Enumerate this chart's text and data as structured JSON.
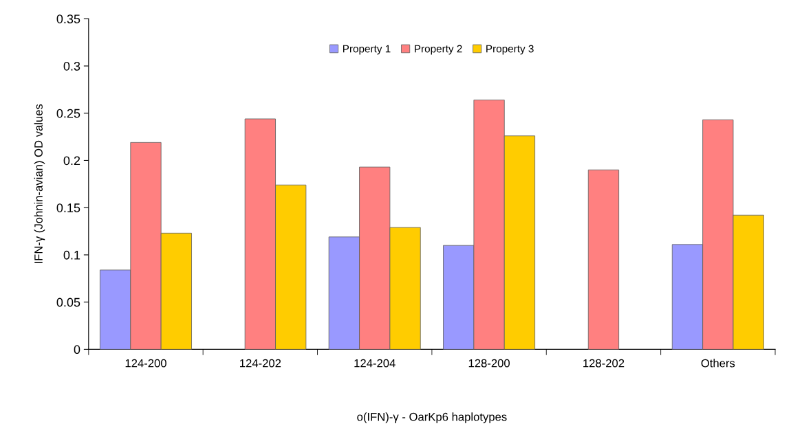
{
  "chart_data": {
    "type": "bar",
    "xlabel": "o(IFN)-γ - OarKp6 haplotypes",
    "ylabel": "IFN-γ (Johnin-avian) OD values",
    "categories": [
      "124-200",
      "124-202",
      "124-204",
      "128-200",
      "128-202",
      "Others"
    ],
    "series": [
      {
        "name": "Property 1",
        "color": "#9999ff",
        "values": [
          0.084,
          null,
          0.119,
          0.11,
          null,
          0.111
        ]
      },
      {
        "name": "Property 2",
        "color": "#ff8080",
        "values": [
          0.219,
          0.244,
          0.193,
          0.264,
          0.19,
          0.243
        ]
      },
      {
        "name": "Property 3",
        "color": "#ffcc00",
        "values": [
          0.123,
          0.174,
          0.129,
          0.226,
          null,
          0.142
        ]
      }
    ],
    "ylim": [
      0,
      0.35
    ],
    "yticks": [
      0,
      0.05,
      0.1,
      0.15,
      0.2,
      0.25,
      0.3,
      0.35
    ],
    "grid": false,
    "legend": "top"
  }
}
